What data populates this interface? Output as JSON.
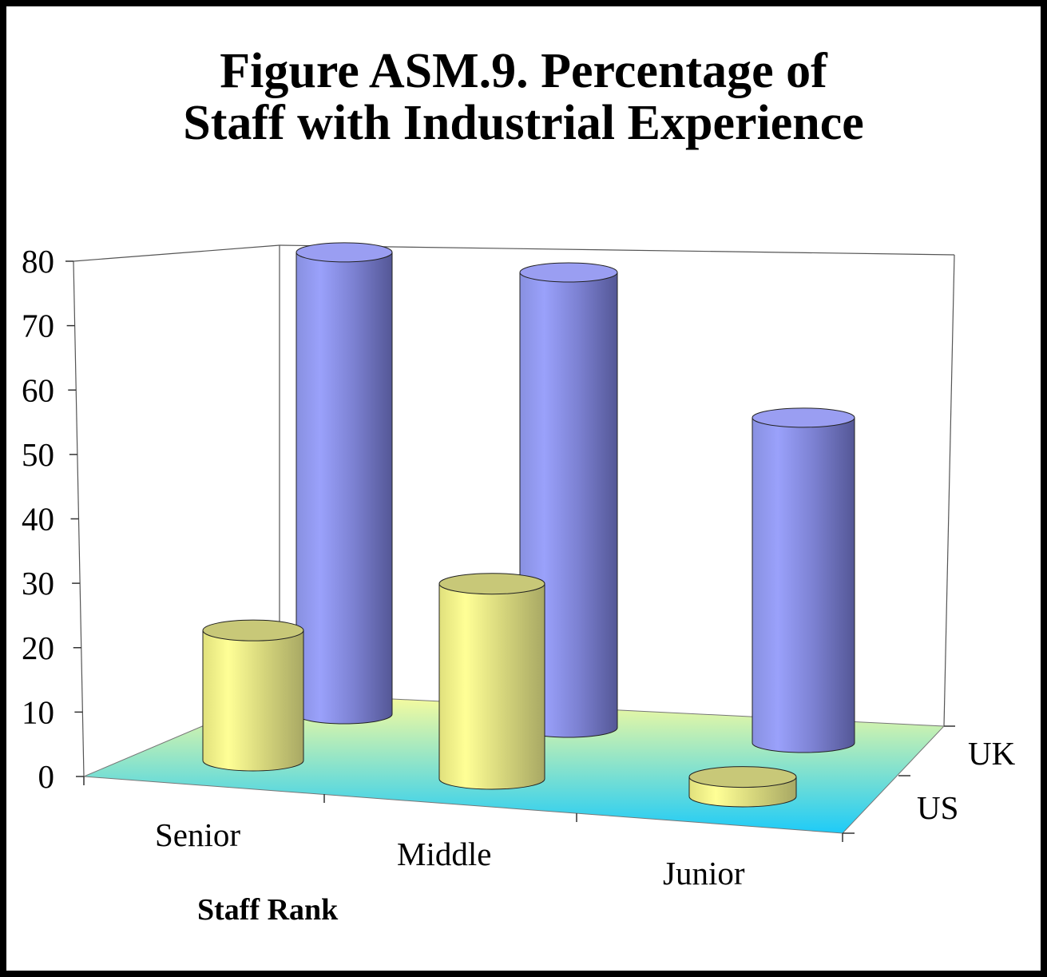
{
  "chart_data": {
    "type": "bar",
    "subtype": "3d-cylinder",
    "title_lines": [
      "Figure ASM.9.  Percentage of",
      "Staff with Industrial Experience"
    ],
    "xlabel": "Staff Rank",
    "ylabel": "",
    "categories": [
      "Senior",
      "Middle",
      "Junior"
    ],
    "series": [
      {
        "name": "US",
        "values": [
          20,
          30,
          3
        ],
        "color": "#f0f08a"
      },
      {
        "name": "UK",
        "values": [
          71,
          70,
          50
        ],
        "color": "#9aa0f2"
      }
    ],
    "ylim": [
      0,
      80
    ],
    "yticks": [
      0,
      10,
      20,
      30,
      40,
      50,
      60,
      70,
      80
    ],
    "grid": false,
    "legend": "none",
    "floor_colors": [
      "#fcfc9c",
      "#1ecbf8"
    ]
  }
}
